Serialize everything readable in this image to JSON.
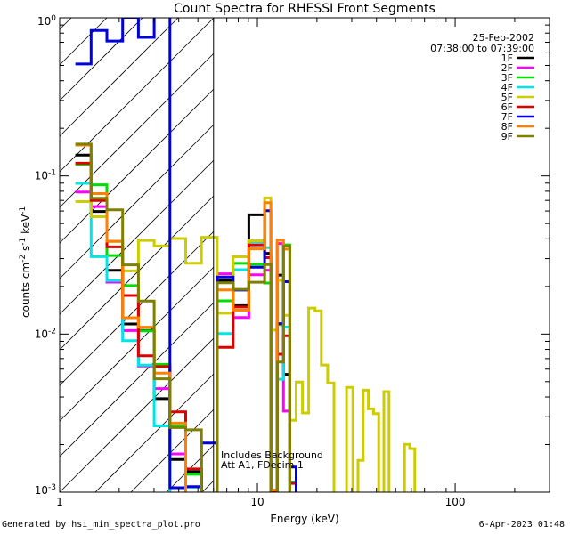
{
  "chart_data": {
    "type": "line",
    "title": "Count Spectra for RHESSI Front Segments",
    "xlabel": "Energy (keV)",
    "ylabel_main": "counts cm",
    "ylabel_parts": [
      "-2",
      " s",
      "-1",
      " keV",
      "-1"
    ],
    "xscale": "log",
    "yscale": "log",
    "xlim": [
      1,
      300
    ],
    "ylim": [
      0.001,
      1
    ],
    "x_tick_labels": [
      {
        "v": 1,
        "t": "1"
      },
      {
        "v": 10,
        "t": "10"
      },
      {
        "v": 100,
        "t": "100"
      }
    ],
    "y_tick_labels": [
      {
        "v": 1,
        "base": "10",
        "exp": "0"
      },
      {
        "v": 0.1,
        "base": "10",
        "exp": "-1"
      },
      {
        "v": 0.01,
        "base": "10",
        "exp": "-2"
      },
      {
        "v": 0.001,
        "base": "10",
        "exp": "-3"
      }
    ],
    "date": "25-Feb-2002",
    "time_range": "07:38:00 to 07:39:00",
    "notes": [
      "Includes Background",
      "Att A1, FDecim  1"
    ],
    "hatched_upper_energy_kev": 6,
    "series": [
      {
        "name": "1F",
        "color": "#000000",
        "y_lo": 0.16,
        "peak": 0.09,
        "tail": 0.0035,
        "hole": 0.0015
      },
      {
        "name": "2F",
        "color": "#ff00ff",
        "y_lo": 0.15,
        "peak": 0.085,
        "tail": 0.0034,
        "hole": 0.0015
      },
      {
        "name": "3F",
        "color": "#00dd00",
        "y_lo": 0.18,
        "peak": 0.08,
        "tail": 0.0033,
        "hole": 0.002
      },
      {
        "name": "4F",
        "color": "#00e5e5",
        "y_lo": 0.11,
        "peak": 0.1,
        "tail": 0.0036,
        "hole": 0.0008
      },
      {
        "name": "5F",
        "color": "#cccc00",
        "y_lo": 0.12,
        "peak": 0.095,
        "tail": 0.0045,
        "hole": 0.02
      },
      {
        "name": "6F",
        "color": "#dd0000",
        "y_lo": 0.19,
        "peak": 0.1,
        "tail": 0.0037,
        "hole": 0.003
      },
      {
        "name": "7F",
        "color": "#0000dd",
        "y_lo": 0.35,
        "peak": 0.105,
        "tail": 0.0032,
        "hole": 0.0009
      },
      {
        "name": "8F",
        "color": "#ff7f00",
        "y_lo": 0.16,
        "peak": 0.095,
        "tail": 0.0038,
        "hole": 0.0025
      },
      {
        "name": "9F",
        "color": "#808000",
        "y_lo": 0.26,
        "peak": 0.12,
        "tail": 0.004,
        "hole": 0.004
      }
    ]
  },
  "footer": {
    "generated_by": "Generated by hsi_min_spectra_plot.pro",
    "timestamp": "6-Apr-2023 01:48"
  }
}
